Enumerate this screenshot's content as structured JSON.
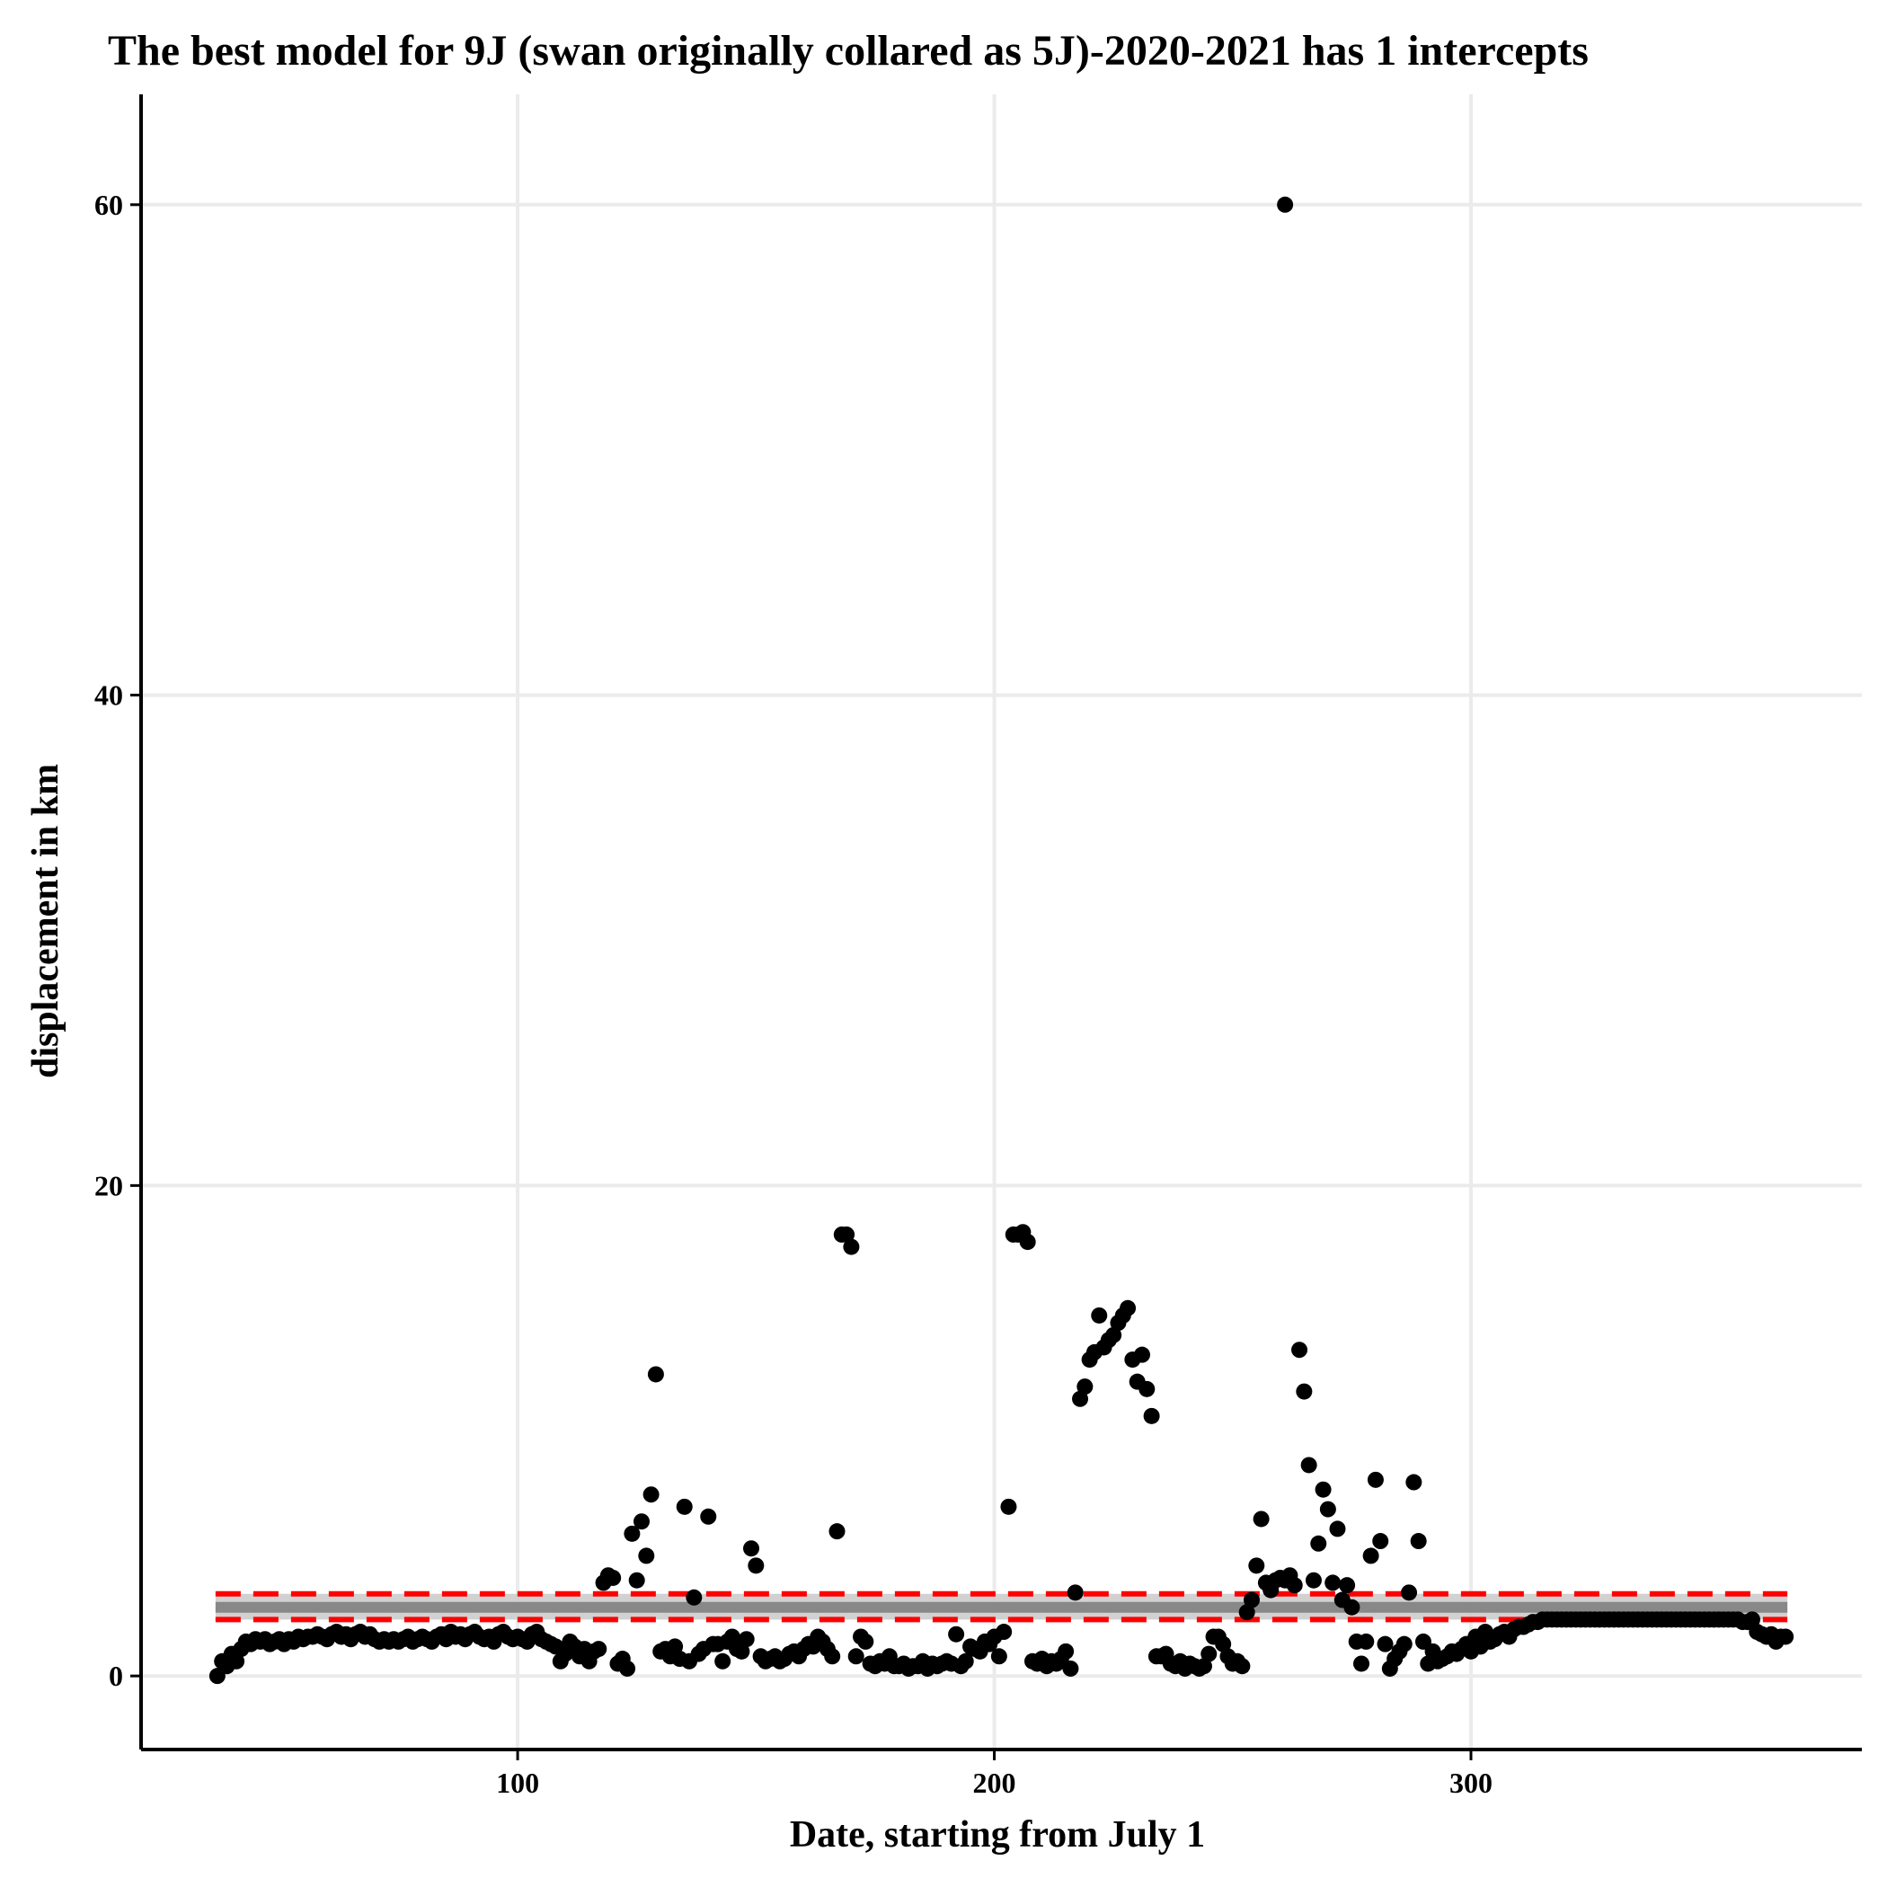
{
  "chart_data": {
    "type": "scatter",
    "title": "The best model for 9J (swan originally collared as 5J)-2020-2021 has 1 intercepts",
    "xlabel": "Date, starting from July 1",
    "ylabel": "displacement in km",
    "xlim": [
      21,
      382
    ],
    "ylim": [
      -3.0,
      64.5
    ],
    "xticks": [
      100,
      200,
      300
    ],
    "yticks": [
      0,
      20,
      40,
      60
    ],
    "grid": true,
    "legend": "none",
    "colors": {
      "points": "#000000",
      "fit": "#888888",
      "fit_band": "#cccccc",
      "bounds": "#ff0000",
      "grid": "#ebebeb",
      "axis": "#000000"
    },
    "intercept": {
      "x_range": [
        37,
        366
      ],
      "fit": 2.8,
      "upper": 3.35,
      "lower": 2.3
    },
    "points": [
      [
        37,
        0.0
      ],
      [
        38,
        0.6
      ],
      [
        39,
        0.4
      ],
      [
        40,
        0.9
      ],
      [
        41,
        0.6
      ],
      [
        42,
        1.1
      ],
      [
        43,
        1.4
      ],
      [
        44,
        1.3
      ],
      [
        45,
        1.5
      ],
      [
        46,
        1.4
      ],
      [
        47,
        1.5
      ],
      [
        48,
        1.3
      ],
      [
        49,
        1.4
      ],
      [
        50,
        1.5
      ],
      [
        51,
        1.3
      ],
      [
        52,
        1.5
      ],
      [
        53,
        1.4
      ],
      [
        54,
        1.6
      ],
      [
        55,
        1.5
      ],
      [
        56,
        1.6
      ],
      [
        57,
        1.6
      ],
      [
        58,
        1.7
      ],
      [
        59,
        1.6
      ],
      [
        60,
        1.5
      ],
      [
        61,
        1.7
      ],
      [
        62,
        1.8
      ],
      [
        63,
        1.6
      ],
      [
        64,
        1.7
      ],
      [
        65,
        1.5
      ],
      [
        66,
        1.7
      ],
      [
        67,
        1.8
      ],
      [
        68,
        1.6
      ],
      [
        69,
        1.7
      ],
      [
        70,
        1.5
      ],
      [
        71,
        1.4
      ],
      [
        72,
        1.5
      ],
      [
        73,
        1.4
      ],
      [
        74,
        1.5
      ],
      [
        75,
        1.4
      ],
      [
        76,
        1.5
      ],
      [
        77,
        1.6
      ],
      [
        78,
        1.4
      ],
      [
        79,
        1.5
      ],
      [
        80,
        1.6
      ],
      [
        81,
        1.5
      ],
      [
        82,
        1.4
      ],
      [
        83,
        1.6
      ],
      [
        84,
        1.7
      ],
      [
        85,
        1.5
      ],
      [
        86,
        1.8
      ],
      [
        87,
        1.6
      ],
      [
        88,
        1.7
      ],
      [
        89,
        1.5
      ],
      [
        90,
        1.7
      ],
      [
        91,
        1.8
      ],
      [
        92,
        1.6
      ],
      [
        93,
        1.5
      ],
      [
        94,
        1.6
      ],
      [
        95,
        1.4
      ],
      [
        96,
        1.7
      ],
      [
        97,
        1.8
      ],
      [
        98,
        1.6
      ],
      [
        99,
        1.5
      ],
      [
        100,
        1.6
      ],
      [
        101,
        1.5
      ],
      [
        102,
        1.4
      ],
      [
        103,
        1.7
      ],
      [
        104,
        1.8
      ],
      [
        105,
        1.5
      ],
      [
        106,
        1.4
      ],
      [
        107,
        1.3
      ],
      [
        108,
        1.2
      ],
      [
        109,
        0.6
      ],
      [
        110,
        0.9
      ],
      [
        111,
        1.4
      ],
      [
        112,
        1.2
      ],
      [
        113,
        0.8
      ],
      [
        114,
        1.1
      ],
      [
        115,
        0.6
      ],
      [
        116,
        1.0
      ],
      [
        117,
        1.1
      ],
      [
        118,
        3.8
      ],
      [
        119,
        4.1
      ],
      [
        120,
        4.0
      ],
      [
        121,
        0.5
      ],
      [
        122,
        0.7
      ],
      [
        123,
        0.3
      ],
      [
        124,
        5.8
      ],
      [
        125,
        3.9
      ],
      [
        126,
        6.3
      ],
      [
        127,
        4.9
      ],
      [
        128,
        7.4
      ],
      [
        129,
        12.3
      ],
      [
        130,
        1.0
      ],
      [
        131,
        1.1
      ],
      [
        132,
        0.8
      ],
      [
        133,
        1.2
      ],
      [
        134,
        0.7
      ],
      [
        135,
        6.9
      ],
      [
        136,
        0.6
      ],
      [
        137,
        3.2
      ],
      [
        138,
        0.9
      ],
      [
        139,
        1.1
      ],
      [
        140,
        6.5
      ],
      [
        141,
        1.3
      ],
      [
        142,
        1.3
      ],
      [
        143,
        0.6
      ],
      [
        144,
        1.4
      ],
      [
        145,
        1.6
      ],
      [
        146,
        1.1
      ],
      [
        147,
        1.0
      ],
      [
        148,
        1.5
      ],
      [
        149,
        5.2
      ],
      [
        150,
        4.5
      ],
      [
        151,
        0.8
      ],
      [
        152,
        0.6
      ],
      [
        153,
        0.7
      ],
      [
        154,
        0.8
      ],
      [
        155,
        0.6
      ],
      [
        156,
        0.7
      ],
      [
        157,
        0.9
      ],
      [
        158,
        1.0
      ],
      [
        159,
        0.8
      ],
      [
        160,
        1.1
      ],
      [
        161,
        1.3
      ],
      [
        162,
        1.2
      ],
      [
        163,
        1.6
      ],
      [
        164,
        1.4
      ],
      [
        165,
        1.1
      ],
      [
        166,
        0.8
      ],
      [
        167,
        5.9
      ],
      [
        168,
        18.0
      ],
      [
        169,
        18.0
      ],
      [
        170,
        17.5
      ],
      [
        171,
        0.8
      ],
      [
        172,
        1.6
      ],
      [
        173,
        1.4
      ],
      [
        174,
        0.5
      ],
      [
        175,
        0.4
      ],
      [
        176,
        0.6
      ],
      [
        177,
        0.5
      ],
      [
        178,
        0.8
      ],
      [
        179,
        0.4
      ],
      [
        180,
        0.4
      ],
      [
        181,
        0.5
      ],
      [
        182,
        0.3
      ],
      [
        183,
        0.4
      ],
      [
        184,
        0.4
      ],
      [
        185,
        0.6
      ],
      [
        186,
        0.3
      ],
      [
        187,
        0.5
      ],
      [
        188,
        0.4
      ],
      [
        189,
        0.5
      ],
      [
        190,
        0.6
      ],
      [
        191,
        0.5
      ],
      [
        192,
        1.7
      ],
      [
        193,
        0.4
      ],
      [
        194,
        0.6
      ],
      [
        195,
        1.2
      ],
      [
        196,
        1.1
      ],
      [
        197,
        1.0
      ],
      [
        198,
        1.4
      ],
      [
        199,
        1.3
      ],
      [
        200,
        1.6
      ],
      [
        201,
        0.8
      ],
      [
        202,
        1.8
      ],
      [
        203,
        6.9
      ],
      [
        204,
        18.0
      ],
      [
        205,
        18.0
      ],
      [
        206,
        18.1
      ],
      [
        207,
        17.7
      ],
      [
        208,
        0.6
      ],
      [
        209,
        0.5
      ],
      [
        210,
        0.7
      ],
      [
        211,
        0.4
      ],
      [
        212,
        0.6
      ],
      [
        213,
        0.5
      ],
      [
        214,
        0.7
      ],
      [
        215,
        1.0
      ],
      [
        216,
        0.3
      ],
      [
        217,
        3.4
      ],
      [
        218,
        11.3
      ],
      [
        219,
        11.8
      ],
      [
        220,
        12.9
      ],
      [
        221,
        13.2
      ],
      [
        222,
        14.7
      ],
      [
        223,
        13.4
      ],
      [
        224,
        13.7
      ],
      [
        225,
        13.9
      ],
      [
        226,
        14.4
      ],
      [
        227,
        14.7
      ],
      [
        228,
        15.0
      ],
      [
        229,
        12.9
      ],
      [
        230,
        12.0
      ],
      [
        231,
        13.1
      ],
      [
        232,
        11.7
      ],
      [
        233,
        10.6
      ],
      [
        234,
        0.8
      ],
      [
        235,
        0.8
      ],
      [
        236,
        0.9
      ],
      [
        237,
        0.5
      ],
      [
        238,
        0.4
      ],
      [
        239,
        0.6
      ],
      [
        240,
        0.3
      ],
      [
        241,
        0.5
      ],
      [
        242,
        0.4
      ],
      [
        243,
        0.3
      ],
      [
        244,
        0.4
      ],
      [
        245,
        0.9
      ],
      [
        246,
        1.6
      ],
      [
        247,
        1.6
      ],
      [
        248,
        1.3
      ],
      [
        249,
        0.8
      ],
      [
        250,
        0.5
      ],
      [
        251,
        0.6
      ],
      [
        252,
        0.4
      ],
      [
        253,
        2.6
      ],
      [
        254,
        3.1
      ],
      [
        255,
        4.5
      ],
      [
        256,
        6.4
      ],
      [
        257,
        3.8
      ],
      [
        258,
        3.5
      ],
      [
        259,
        3.9
      ],
      [
        260,
        4.0
      ],
      [
        261,
        3.9
      ],
      [
        262,
        4.1
      ],
      [
        263,
        3.7
      ],
      [
        264,
        13.3
      ],
      [
        265,
        11.6
      ],
      [
        266,
        8.6
      ],
      [
        267,
        3.9
      ],
      [
        268,
        5.4
      ],
      [
        269,
        7.6
      ],
      [
        270,
        6.8
      ],
      [
        271,
        3.8
      ],
      [
        272,
        6.0
      ],
      [
        273,
        3.1
      ],
      [
        274,
        3.7
      ],
      [
        275,
        2.8
      ],
      [
        276,
        1.4
      ],
      [
        277,
        0.5
      ],
      [
        278,
        1.4
      ],
      [
        279,
        4.9
      ],
      [
        280,
        8.0
      ],
      [
        281,
        5.5
      ],
      [
        282,
        1.3
      ],
      [
        283,
        0.3
      ],
      [
        284,
        0.7
      ],
      [
        285,
        1.0
      ],
      [
        286,
        1.3
      ],
      [
        287,
        3.4
      ],
      [
        288,
        7.9
      ],
      [
        289,
        5.5
      ],
      [
        290,
        1.4
      ],
      [
        291,
        0.5
      ],
      [
        292,
        1.0
      ],
      [
        293,
        0.6
      ],
      [
        294,
        0.7
      ],
      [
        295,
        0.8
      ],
      [
        296,
        1.0
      ],
      [
        297,
        0.9
      ],
      [
        298,
        1.1
      ],
      [
        299,
        1.3
      ],
      [
        300,
        1.0
      ],
      [
        301,
        1.6
      ],
      [
        302,
        1.2
      ],
      [
        303,
        1.8
      ],
      [
        304,
        1.4
      ],
      [
        305,
        1.5
      ],
      [
        306,
        1.7
      ],
      [
        307,
        1.8
      ],
      [
        308,
        1.6
      ],
      [
        309,
        1.9
      ],
      [
        310,
        2.0
      ],
      [
        311,
        2.0
      ],
      [
        312,
        2.1
      ],
      [
        313,
        2.2
      ],
      [
        314,
        2.2
      ],
      [
        315,
        2.3
      ],
      [
        316,
        2.3
      ],
      [
        317,
        2.3
      ],
      [
        318,
        2.3
      ],
      [
        319,
        2.3
      ],
      [
        320,
        2.3
      ],
      [
        321,
        2.3
      ],
      [
        322,
        2.3
      ],
      [
        323,
        2.3
      ],
      [
        324,
        2.3
      ],
      [
        325,
        2.3
      ],
      [
        326,
        2.3
      ],
      [
        327,
        2.3
      ],
      [
        328,
        2.3
      ],
      [
        329,
        2.3
      ],
      [
        330,
        2.3
      ],
      [
        331,
        2.3
      ],
      [
        332,
        2.3
      ],
      [
        333,
        2.3
      ],
      [
        334,
        2.3
      ],
      [
        335,
        2.3
      ],
      [
        336,
        2.3
      ],
      [
        337,
        2.3
      ],
      [
        338,
        2.3
      ],
      [
        339,
        2.3
      ],
      [
        340,
        2.3
      ],
      [
        341,
        2.3
      ],
      [
        342,
        2.3
      ],
      [
        343,
        2.3
      ],
      [
        344,
        2.3
      ],
      [
        345,
        2.3
      ],
      [
        346,
        2.3
      ],
      [
        347,
        2.3
      ],
      [
        348,
        2.3
      ],
      [
        349,
        2.3
      ],
      [
        350,
        2.3
      ],
      [
        351,
        2.3
      ],
      [
        352,
        2.3
      ],
      [
        353,
        2.3
      ],
      [
        354,
        2.3
      ],
      [
        355,
        2.3
      ],
      [
        356,
        2.3
      ],
      [
        357,
        2.2
      ],
      [
        358,
        2.2
      ],
      [
        359,
        2.3
      ],
      [
        360,
        1.8
      ],
      [
        361,
        1.7
      ],
      [
        362,
        1.6
      ],
      [
        363,
        1.7
      ],
      [
        364,
        1.4
      ],
      [
        365,
        1.6
      ],
      [
        366,
        1.6
      ],
      [
        261,
        60.0
      ]
    ]
  }
}
